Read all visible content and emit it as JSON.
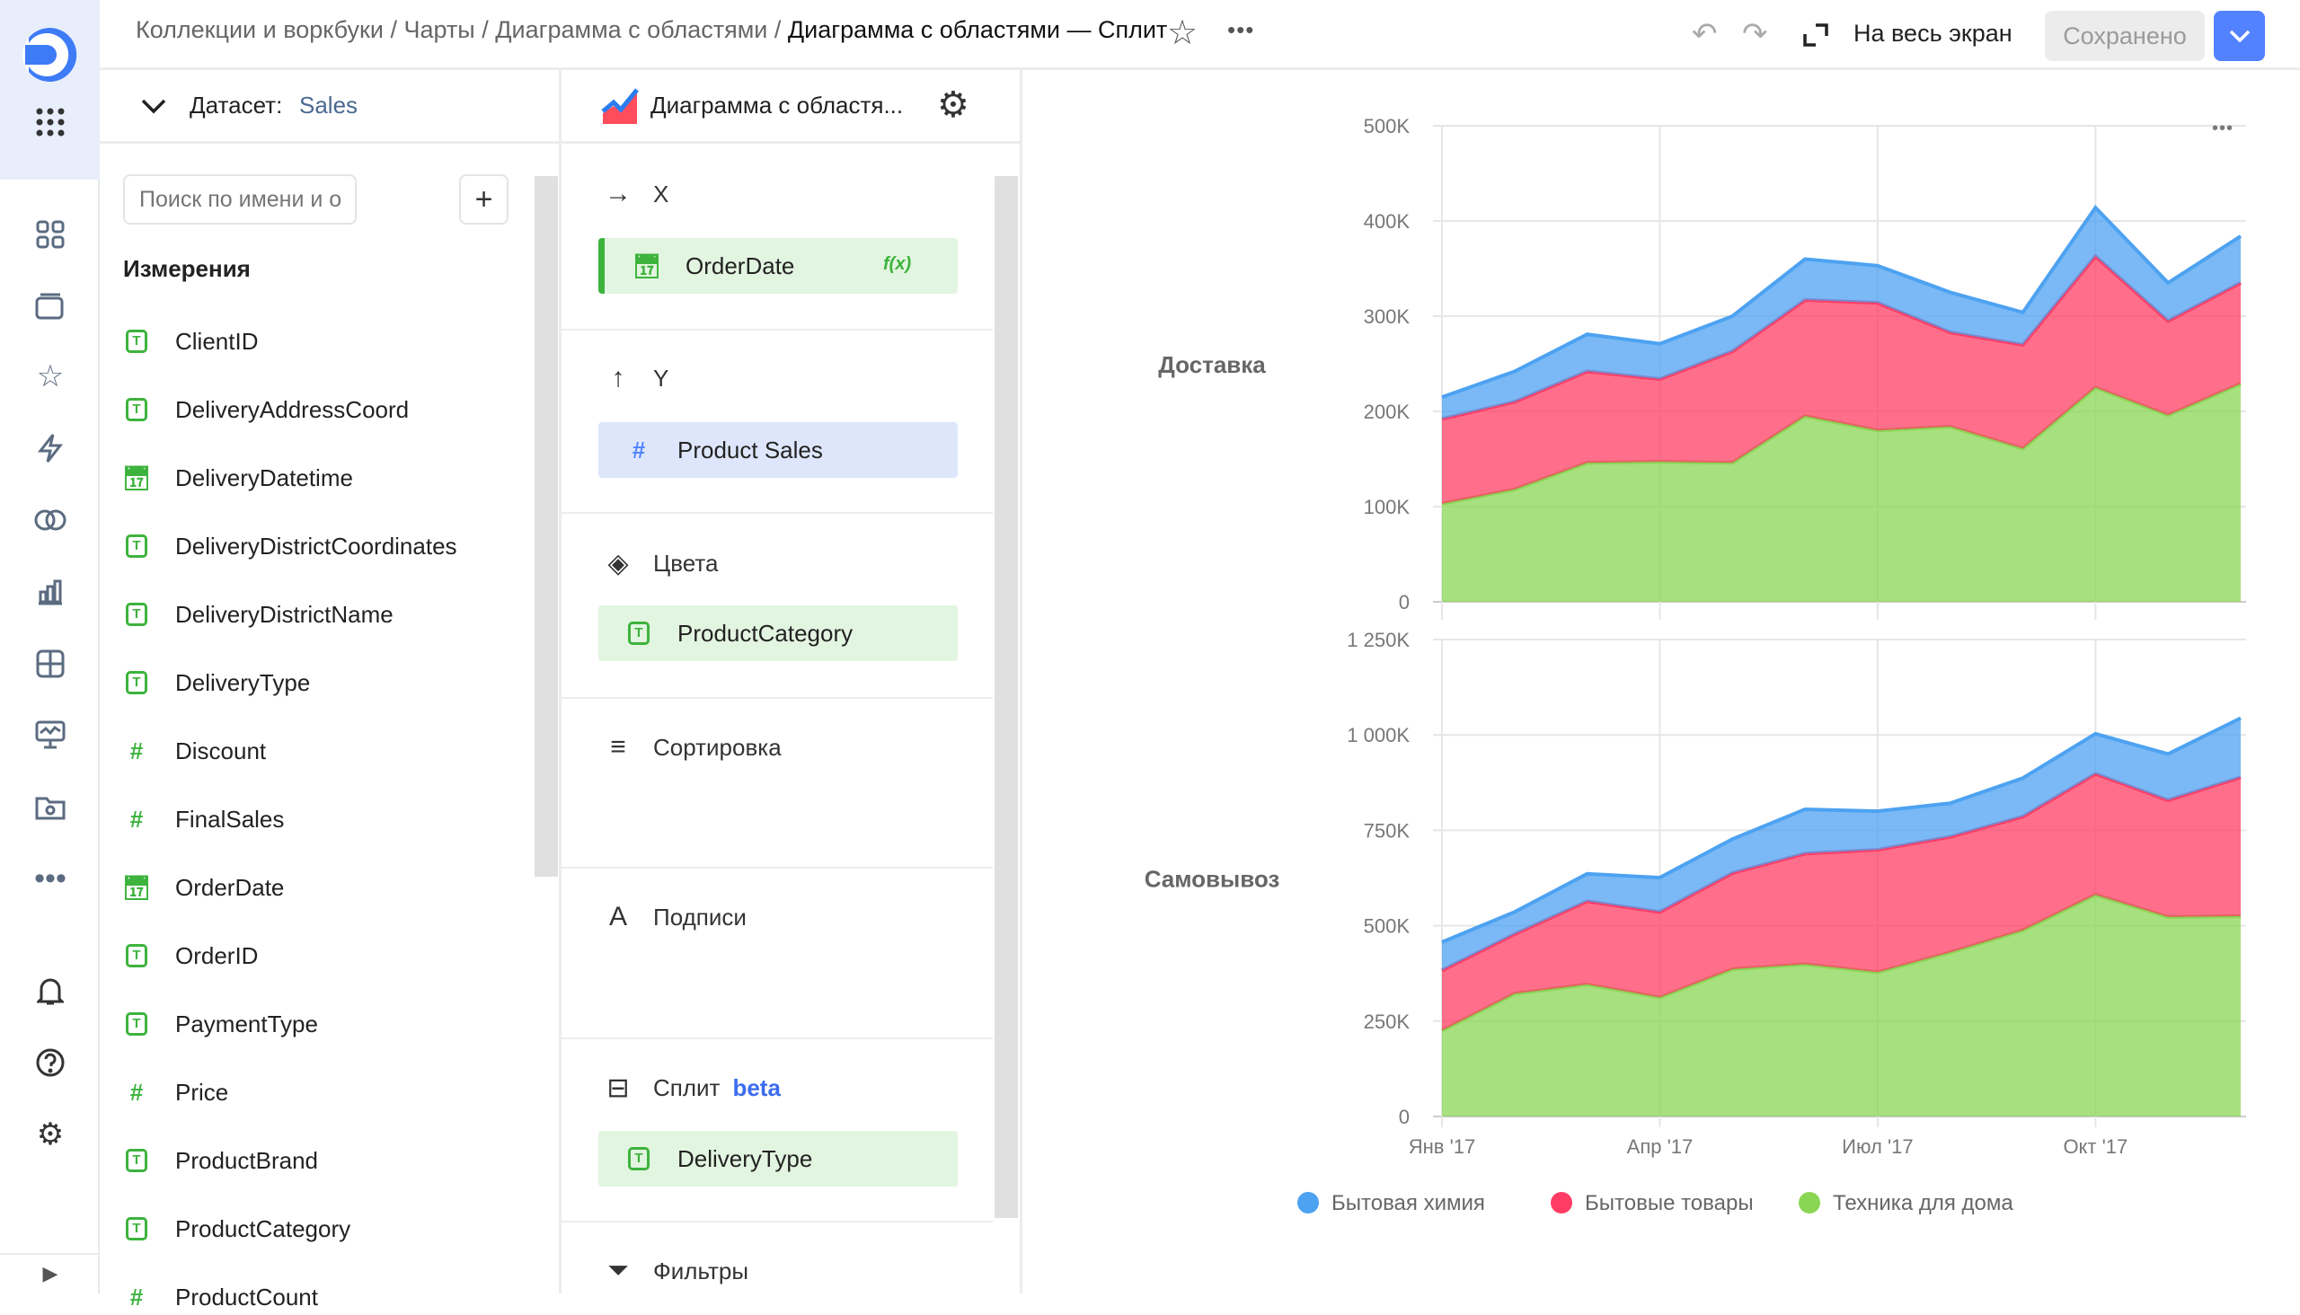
{
  "header": {
    "breadcrumbs": [
      "Коллекции и воркбуки",
      "Чарты",
      "Диаграмма с областями"
    ],
    "separator": "/",
    "title": "Диаграмма с областями — Сплит",
    "fullscreen_label": "На весь экран",
    "save_label": "Сохранено",
    "accent": "#5282ff"
  },
  "dataset": {
    "label": "Датасет:",
    "name": "Sales",
    "search_placeholder": "Поиск по имени и описанию",
    "dimensions_title": "Измерения",
    "fields": [
      {
        "name": "ClientID",
        "type": "text"
      },
      {
        "name": "DeliveryAddressCoord",
        "type": "text"
      },
      {
        "name": "DeliveryDatetime",
        "type": "date"
      },
      {
        "name": "DeliveryDistrictCoordinates",
        "type": "text"
      },
      {
        "name": "DeliveryDistrictName",
        "type": "text"
      },
      {
        "name": "DeliveryType",
        "type": "text"
      },
      {
        "name": "Discount",
        "type": "number"
      },
      {
        "name": "FinalSales",
        "type": "number"
      },
      {
        "name": "OrderDate",
        "type": "date"
      },
      {
        "name": "OrderID",
        "type": "text"
      },
      {
        "name": "PaymentType",
        "type": "text"
      },
      {
        "name": "Price",
        "type": "number"
      },
      {
        "name": "ProductBrand",
        "type": "text"
      },
      {
        "name": "ProductCategory",
        "type": "text"
      },
      {
        "name": "ProductCount",
        "type": "number"
      }
    ]
  },
  "config": {
    "chart_type": "Диаграмма с областя...",
    "x_label": "X",
    "x_field": "OrderDate",
    "x_formula_badge": "f(x)",
    "y_label": "Y",
    "y_field": "Product Sales",
    "colors_label": "Цвета",
    "colors_field": "ProductCategory",
    "sort_label": "Сортировка",
    "labels_label": "Подписи",
    "split_label": "Сплит",
    "split_badge": "beta",
    "split_field": "DeliveryType",
    "filters_label": "Фильтры"
  },
  "chart_data": {
    "type": "area",
    "stacked": true,
    "x": [
      "2017-01",
      "2017-02",
      "2017-03",
      "2017-04",
      "2017-05",
      "2017-06",
      "2017-07",
      "2017-08",
      "2017-09",
      "2017-10",
      "2017-11",
      "2017-12"
    ],
    "x_tick_labels": [
      "Янв '17",
      "Апр '17",
      "Июл '17",
      "Окт '17"
    ],
    "legend": {
      "placement": "bottom"
    },
    "grid": true,
    "series_names": [
      "Бытовая химия",
      "Бытовые товары",
      "Техника для дома"
    ],
    "colors": [
      "#4da2f1",
      "#ff3d64",
      "#8ad554"
    ],
    "panels": [
      {
        "label": "Доставка",
        "ylim": [
          0,
          500000
        ],
        "y_tick_labels": [
          "0",
          "100K",
          "200K",
          "300K",
          "400K",
          "500K"
        ],
        "series": [
          {
            "name": "Бытовая химия",
            "values": [
              23000,
              32000,
              39000,
              37000,
              37000,
              43000,
              39000,
              42000,
              34000,
              51000,
              40000,
              49000
            ]
          },
          {
            "name": "Бытовые товары",
            "values": [
              89000,
              92000,
              96000,
              87000,
              117000,
              122000,
              134000,
              99000,
              109000,
              138000,
              99000,
              106000
            ]
          },
          {
            "name": "Техника для дома",
            "values": [
              103000,
              118000,
              146000,
              147000,
              146000,
              195000,
              180000,
              184000,
              161000,
              225000,
              196000,
              229000
            ]
          }
        ]
      },
      {
        "label": "Самовывоз",
        "ylim": [
          0,
          1250000
        ],
        "y_tick_labels": [
          "0",
          "250K",
          "500K",
          "750K",
          "1 000K",
          "1 250K"
        ],
        "series": [
          {
            "name": "Бытовая химия",
            "values": [
              74000,
              58000,
              72000,
              90000,
              89000,
              116000,
              101000,
              88000,
              101000,
              105000,
              121000,
              155000
            ]
          },
          {
            "name": "Бытовые товары",
            "values": [
              158000,
              156000,
              218000,
              224000,
              252000,
              290000,
              321000,
              303000,
              298000,
              317000,
              306000,
              364000
            ]
          },
          {
            "name": "Техника для дома",
            "values": [
              225000,
              322000,
              346000,
              312000,
              386000,
              399000,
              378000,
              430000,
              488000,
              581000,
              523000,
              525000
            ]
          }
        ]
      }
    ]
  }
}
